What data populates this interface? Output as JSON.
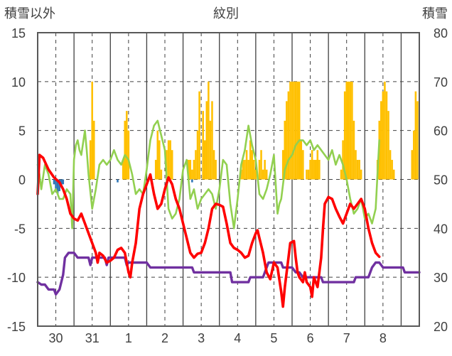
{
  "chart_data": {
    "type": "line",
    "title": "紋別",
    "y_left_label": "積雪以外",
    "y_right_label": "積雪",
    "y_left_range": [
      -15,
      15
    ],
    "y_left_ticks": [
      "15",
      "10",
      "5",
      "0",
      "-5",
      "-10",
      "-15"
    ],
    "y_right_range": [
      20,
      80
    ],
    "y_right_ticks": [
      "80",
      "70",
      "60",
      "50",
      "40",
      "30",
      "20"
    ],
    "x_range_days": [
      0,
      10.5
    ],
    "x_day_labels": [
      "30",
      "31",
      "1",
      "2",
      "3",
      "4",
      "5",
      "6",
      "7",
      "8"
    ],
    "grid": true,
    "colors": {
      "frame": "#595959",
      "grid": "#404040",
      "temperature": "#ff0000",
      "green_series": "#92d050",
      "snow_depth": "#7030a0",
      "precip_bar": "#ffc000",
      "blue_bar": "#2e75b6"
    },
    "temperature": [
      [
        0,
        -1.5
      ],
      [
        0.05,
        2.5
      ],
      [
        0.15,
        2.2
      ],
      [
        0.3,
        1.0
      ],
      [
        0.45,
        0.2
      ],
      [
        0.6,
        -0.3
      ],
      [
        0.7,
        -1.0
      ],
      [
        0.8,
        -2.0
      ],
      [
        0.9,
        -3.5
      ],
      [
        1.0,
        -4.0
      ],
      [
        1.1,
        -4.2
      ],
      [
        1.2,
        -3.5
      ],
      [
        1.3,
        -4.5
      ],
      [
        1.4,
        -5.5
      ],
      [
        1.5,
        -6.5
      ],
      [
        1.6,
        -7.5
      ],
      [
        1.65,
        -8.5
      ],
      [
        1.7,
        -7.5
      ],
      [
        1.8,
        -7.8
      ],
      [
        1.9,
        -8.5
      ],
      [
        2.0,
        -8.3
      ],
      [
        2.1,
        -8.0
      ],
      [
        2.2,
        -7.2
      ],
      [
        2.3,
        -7.0
      ],
      [
        2.4,
        -7.5
      ],
      [
        2.5,
        -9.5
      ],
      [
        2.55,
        -10.0
      ],
      [
        2.6,
        -8.5
      ],
      [
        2.7,
        -6.5
      ],
      [
        2.8,
        -3.0
      ],
      [
        2.9,
        -1.5
      ],
      [
        3.0,
        -0.5
      ],
      [
        3.1,
        0.5
      ],
      [
        3.2,
        -1.5
      ],
      [
        3.3,
        -3.0
      ],
      [
        3.4,
        -2.5
      ],
      [
        3.5,
        -1.0
      ],
      [
        3.6,
        0.2
      ],
      [
        3.7,
        -0.5
      ],
      [
        3.8,
        -2.0
      ],
      [
        3.9,
        -3.0
      ],
      [
        4.0,
        -4.5
      ],
      [
        4.1,
        -6.0
      ],
      [
        4.2,
        -7.5
      ],
      [
        4.3,
        -8.0
      ],
      [
        4.4,
        -7.6
      ],
      [
        4.5,
        -7.5
      ],
      [
        4.6,
        -6.5
      ],
      [
        4.7,
        -5.0
      ],
      [
        4.8,
        -3.0
      ],
      [
        4.9,
        -2.5
      ],
      [
        5.0,
        -2.6
      ],
      [
        5.1,
        -2.8
      ],
      [
        5.2,
        -4.5
      ],
      [
        5.3,
        -6.5
      ],
      [
        5.4,
        -7.0
      ],
      [
        5.5,
        -7.2
      ],
      [
        5.6,
        -7.5
      ],
      [
        5.7,
        -8.0
      ],
      [
        5.8,
        -7.8
      ],
      [
        5.9,
        -6.5
      ],
      [
        6.0,
        -5.5
      ],
      [
        6.05,
        -5.2
      ],
      [
        6.1,
        -6.0
      ],
      [
        6.2,
        -7.5
      ],
      [
        6.3,
        -9.5
      ],
      [
        6.4,
        -10.2
      ],
      [
        6.5,
        -8.5
      ],
      [
        6.6,
        -9.0
      ],
      [
        6.7,
        -11.5
      ],
      [
        6.75,
        -13.0
      ],
      [
        6.8,
        -11.0
      ],
      [
        6.9,
        -8.0
      ],
      [
        6.95,
        -6.5
      ],
      [
        7.05,
        -6.3
      ],
      [
        7.1,
        -8.0
      ],
      [
        7.15,
        -9.5
      ],
      [
        7.2,
        -10.0
      ],
      [
        7.3,
        -10.5
      ],
      [
        7.35,
        -9.5
      ],
      [
        7.4,
        -10.5
      ],
      [
        7.5,
        -11.0
      ],
      [
        7.55,
        -12.0
      ],
      [
        7.6,
        -10.0
      ],
      [
        7.7,
        -11.0
      ],
      [
        7.8,
        -8.0
      ],
      [
        7.85,
        -5.0
      ],
      [
        7.9,
        -2.5
      ],
      [
        8.0,
        -1.8
      ],
      [
        8.1,
        -2.0
      ],
      [
        8.2,
        -3.0
      ],
      [
        8.3,
        -3.8
      ],
      [
        8.4,
        -4.5
      ],
      [
        8.5,
        -3.5
      ],
      [
        8.6,
        -2.5
      ],
      [
        8.7,
        -3.0
      ],
      [
        8.8,
        -2.5
      ],
      [
        8.9,
        -2.0
      ],
      [
        9.0,
        -3.0
      ],
      [
        9.1,
        -5.0
      ],
      [
        9.2,
        -6.5
      ],
      [
        9.3,
        -7.5
      ],
      [
        9.4,
        -7.9
      ]
    ],
    "green_series": [
      [
        0,
        1.5
      ],
      [
        0.05,
        0.5
      ],
      [
        0.1,
        -1.0
      ],
      [
        0.2,
        1.5
      ],
      [
        0.3,
        0.5
      ],
      [
        0.4,
        -1.5
      ],
      [
        0.5,
        -1.0
      ],
      [
        0.6,
        -2.0
      ],
      [
        0.7,
        -2.0
      ],
      [
        0.8,
        -1.0
      ],
      [
        0.9,
        -1.5
      ],
      [
        0.95,
        -5.0
      ],
      [
        1.0,
        2.0
      ],
      [
        1.05,
        3.5
      ],
      [
        1.1,
        4.0
      ],
      [
        1.15,
        3.0
      ],
      [
        1.2,
        2.5
      ],
      [
        1.3,
        5.0
      ],
      [
        1.35,
        3.0
      ],
      [
        1.4,
        0.5
      ],
      [
        1.5,
        -3.0
      ],
      [
        1.6,
        -1.0
      ],
      [
        1.7,
        1.5
      ],
      [
        1.8,
        2.0
      ],
      [
        1.9,
        1.5
      ],
      [
        2.0,
        2.0
      ],
      [
        2.1,
        3.0
      ],
      [
        2.2,
        2.0
      ],
      [
        2.3,
        1.5
      ],
      [
        2.4,
        2.5
      ],
      [
        2.5,
        2.0
      ],
      [
        2.6,
        0.5
      ],
      [
        2.7,
        -1.5
      ],
      [
        2.8,
        -1.0
      ],
      [
        2.9,
        -1.5
      ],
      [
        3.0,
        1.0
      ],
      [
        3.1,
        4.0
      ],
      [
        3.2,
        5.5
      ],
      [
        3.3,
        6.0
      ],
      [
        3.4,
        4.5
      ],
      [
        3.5,
        3.0
      ],
      [
        3.6,
        -3.0
      ],
      [
        3.7,
        -4.0
      ],
      [
        3.8,
        -3.5
      ],
      [
        3.9,
        -2.0
      ],
      [
        4.0,
        1.0
      ],
      [
        4.1,
        2.0
      ],
      [
        4.2,
        -2.0
      ],
      [
        4.3,
        -1.0
      ],
      [
        4.4,
        -3.0
      ],
      [
        4.5,
        -2.0
      ],
      [
        4.6,
        -1.5
      ],
      [
        4.7,
        -1.0
      ],
      [
        4.8,
        -1.5
      ],
      [
        4.9,
        -3.0
      ],
      [
        5.0,
        -1.0
      ],
      [
        5.1,
        2.0
      ],
      [
        5.2,
        1.5
      ],
      [
        5.3,
        -2.5
      ],
      [
        5.4,
        -5.0
      ],
      [
        5.5,
        -2.0
      ],
      [
        5.6,
        1.5
      ],
      [
        5.7,
        3.0
      ],
      [
        5.8,
        5.5
      ],
      [
        5.9,
        3.5
      ],
      [
        6.0,
        2.0
      ],
      [
        6.1,
        -1.5
      ],
      [
        6.2,
        -2.0
      ],
      [
        6.3,
        -1.0
      ],
      [
        6.4,
        0.5
      ],
      [
        6.5,
        2.5
      ],
      [
        6.6,
        -3.5
      ],
      [
        6.65,
        -2.5
      ],
      [
        6.7,
        -2.0
      ],
      [
        6.8,
        1.0
      ],
      [
        6.9,
        2.0
      ],
      [
        7.0,
        2.5
      ],
      [
        7.1,
        3.5
      ],
      [
        7.2,
        4.0
      ],
      [
        7.3,
        4.0
      ],
      [
        7.4,
        3.5
      ],
      [
        7.5,
        4.0
      ],
      [
        7.6,
        3.0
      ],
      [
        7.7,
        3.5
      ],
      [
        7.8,
        3.0
      ],
      [
        7.9,
        2.5
      ],
      [
        8.0,
        2.0
      ],
      [
        8.1,
        3.0
      ],
      [
        8.2,
        1.5
      ],
      [
        8.3,
        2.5
      ],
      [
        8.4,
        1.5
      ],
      [
        8.5,
        0.0
      ],
      [
        8.6,
        -2.0
      ],
      [
        8.7,
        -3.5
      ],
      [
        8.8,
        -3.0
      ],
      [
        8.9,
        -2.0
      ],
      [
        9.0,
        -4.0
      ],
      [
        9.1,
        -3.5
      ],
      [
        9.2,
        -4.5
      ],
      [
        9.3,
        -3.0
      ],
      [
        9.4,
        4.0
      ]
    ],
    "snow_depth": [
      [
        0,
        29
      ],
      [
        0.1,
        28.5
      ],
      [
        0.2,
        28.5
      ],
      [
        0.3,
        27.5
      ],
      [
        0.45,
        27.5
      ],
      [
        0.5,
        26.5
      ],
      [
        0.6,
        27.5
      ],
      [
        0.7,
        30.5
      ],
      [
        0.75,
        34
      ],
      [
        0.85,
        35
      ],
      [
        1.0,
        35
      ],
      [
        1.1,
        34
      ],
      [
        1.4,
        34
      ],
      [
        1.45,
        32.5
      ],
      [
        1.5,
        34
      ],
      [
        1.85,
        34
      ],
      [
        1.9,
        32.5
      ],
      [
        1.95,
        34
      ],
      [
        2.4,
        34
      ],
      [
        2.45,
        32.5
      ],
      [
        2.5,
        33
      ],
      [
        3.0,
        33
      ],
      [
        3.1,
        32
      ],
      [
        4.25,
        32
      ],
      [
        4.3,
        31
      ],
      [
        5.3,
        31
      ],
      [
        5.35,
        29
      ],
      [
        5.8,
        29
      ],
      [
        5.85,
        30
      ],
      [
        6.2,
        30
      ],
      [
        6.3,
        32
      ],
      [
        6.35,
        33
      ],
      [
        6.7,
        33
      ],
      [
        6.75,
        32
      ],
      [
        7.0,
        32
      ],
      [
        7.1,
        31
      ],
      [
        7.2,
        31
      ],
      [
        7.3,
        30
      ],
      [
        7.8,
        30
      ],
      [
        7.85,
        29
      ],
      [
        8.7,
        29
      ],
      [
        8.75,
        30
      ],
      [
        9.1,
        30
      ],
      [
        9.2,
        32
      ],
      [
        9.3,
        33
      ],
      [
        9.4,
        33
      ],
      [
        9.5,
        32
      ],
      [
        10.05,
        32
      ],
      [
        10.1,
        31
      ],
      [
        10.2,
        31
      ],
      [
        10.4,
        31
      ],
      [
        10.5,
        31
      ]
    ],
    "precip_bars": [
      [
        1.45,
        4
      ],
      [
        1.5,
        10
      ],
      [
        1.55,
        6
      ],
      [
        2.35,
        2
      ],
      [
        2.4,
        6
      ],
      [
        2.45,
        7
      ],
      [
        2.5,
        5
      ],
      [
        3.25,
        2
      ],
      [
        3.3,
        5
      ],
      [
        3.35,
        4
      ],
      [
        3.4,
        1
      ],
      [
        3.55,
        3
      ],
      [
        3.6,
        4
      ],
      [
        3.65,
        4
      ],
      [
        3.7,
        3
      ],
      [
        4.15,
        2
      ],
      [
        4.2,
        2
      ],
      [
        4.25,
        1
      ],
      [
        4.3,
        2
      ],
      [
        4.35,
        3
      ],
      [
        4.4,
        5
      ],
      [
        4.45,
        9
      ],
      [
        4.55,
        7
      ],
      [
        4.6,
        4
      ],
      [
        4.65,
        8
      ],
      [
        4.7,
        10
      ],
      [
        4.75,
        6
      ],
      [
        4.8,
        8
      ],
      [
        4.85,
        3
      ],
      [
        4.9,
        2
      ],
      [
        5.6,
        1
      ],
      [
        5.65,
        2
      ],
      [
        5.7,
        2
      ],
      [
        5.75,
        3
      ],
      [
        5.8,
        2
      ],
      [
        5.85,
        4
      ],
      [
        5.9,
        3
      ],
      [
        5.95,
        2
      ],
      [
        6.0,
        1
      ],
      [
        6.1,
        2
      ],
      [
        6.15,
        3
      ],
      [
        6.2,
        1
      ],
      [
        6.25,
        2
      ],
      [
        6.3,
        1
      ],
      [
        6.75,
        3
      ],
      [
        6.8,
        6
      ],
      [
        6.85,
        8
      ],
      [
        6.9,
        9
      ],
      [
        6.95,
        10
      ],
      [
        7.0,
        10
      ],
      [
        7.05,
        10
      ],
      [
        7.1,
        10
      ],
      [
        7.15,
        10
      ],
      [
        7.2,
        10
      ],
      [
        7.25,
        4
      ],
      [
        7.3,
        3
      ],
      [
        7.4,
        1
      ],
      [
        7.45,
        1
      ],
      [
        7.5,
        2
      ],
      [
        7.55,
        3
      ],
      [
        7.6,
        2
      ],
      [
        7.65,
        2
      ],
      [
        7.7,
        3
      ],
      [
        7.75,
        2
      ],
      [
        8.35,
        1
      ],
      [
        8.4,
        4
      ],
      [
        8.45,
        9
      ],
      [
        8.5,
        10
      ],
      [
        8.55,
        10
      ],
      [
        8.6,
        10
      ],
      [
        8.65,
        10
      ],
      [
        8.7,
        6
      ],
      [
        8.75,
        3
      ],
      [
        8.8,
        2
      ],
      [
        8.85,
        2
      ],
      [
        8.9,
        1
      ],
      [
        9.35,
        2
      ],
      [
        9.4,
        6
      ],
      [
        9.45,
        8
      ],
      [
        9.5,
        9
      ],
      [
        9.55,
        10
      ],
      [
        9.6,
        9
      ],
      [
        9.65,
        7
      ],
      [
        9.7,
        3
      ],
      [
        9.75,
        2
      ],
      [
        9.8,
        1
      ],
      [
        10.3,
        3
      ],
      [
        10.35,
        5
      ],
      [
        10.4,
        9
      ],
      [
        10.45,
        8
      ]
    ],
    "blue_bars": [
      [
        0.45,
        -0.5
      ],
      [
        0.5,
        -1.0
      ],
      [
        0.55,
        -1.5
      ],
      [
        0.6,
        -1.2
      ],
      [
        0.65,
        -0.8
      ],
      [
        0.7,
        -0.5
      ],
      [
        2.2,
        -0.3
      ],
      [
        4.25,
        -0.3
      ]
    ]
  }
}
